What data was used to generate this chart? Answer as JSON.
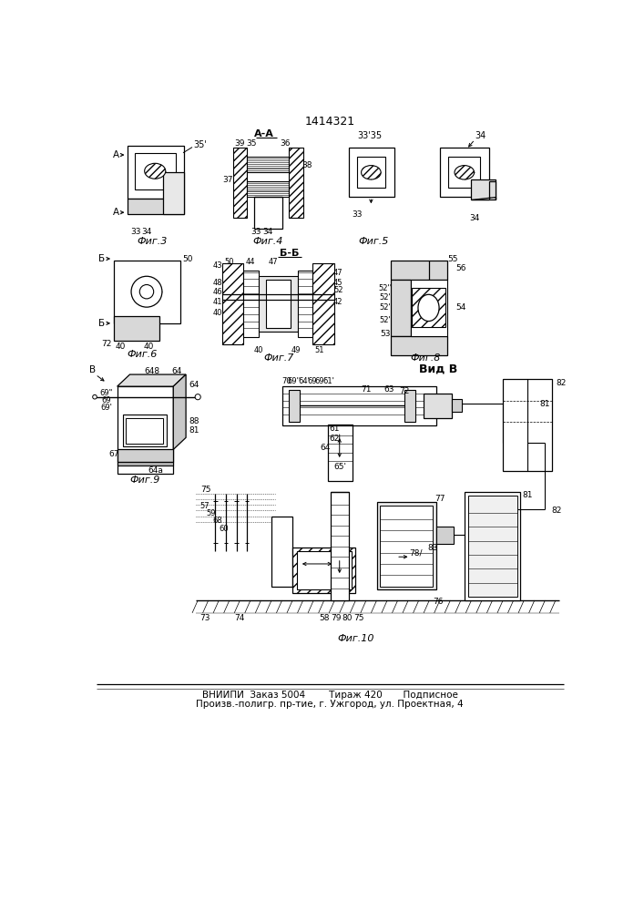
{
  "patent_number": "1414321",
  "bottom_text_line1": "ВНИИПИ  Заказ 5004        Тираж 420       Подписное",
  "bottom_text_line2": "Произв.-полигр. пр-тие, г. Ужгород, ул. Проектная, 4",
  "bg_color": "#ffffff"
}
